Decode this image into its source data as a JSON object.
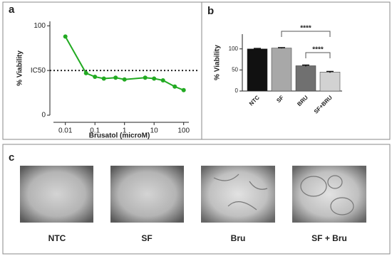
{
  "panel_labels": [
    "a",
    "b",
    "c"
  ],
  "chart_data": [
    {
      "type": "line",
      "x": [
        0.01,
        0.05,
        0.1,
        0.2,
        0.5,
        1,
        5,
        10,
        20,
        50,
        100
      ],
      "values": [
        88,
        47,
        43,
        41,
        42,
        40,
        42,
        41,
        39,
        32,
        28
      ],
      "color": "#22aa22",
      "log_x": true,
      "xlim": [
        0.003,
        150
      ],
      "xticks": [
        0.01,
        0.1,
        1,
        10,
        100
      ],
      "ylim": [
        0,
        105
      ],
      "yticks": [
        0,
        {
          "value": 50,
          "label": "IC50"
        },
        100
      ],
      "reference_line": 50,
      "xlabel": "Brusatol (microM)",
      "ylabel": "% Viability"
    },
    {
      "type": "bar",
      "categories": [
        "NTC",
        "SF",
        "BRU",
        "SF+BRU"
      ],
      "values": [
        100,
        102,
        60,
        45
      ],
      "errors": [
        1,
        1,
        1.5,
        1.5
      ],
      "colors": [
        "#111111",
        "#a8a8a8",
        "#707070",
        "#d2d2d2"
      ],
      "ylim": [
        0,
        135
      ],
      "yticks": [
        0,
        50,
        100
      ],
      "ylabel": "% Viability",
      "annotations": [
        {
          "text": "****",
          "categories": [
            "SF",
            "SF+BRU"
          ]
        },
        {
          "text": "****",
          "categories": [
            "BRU",
            "SF+BRU"
          ]
        }
      ]
    }
  ],
  "images": {
    "labels": [
      "NTC",
      "SF",
      "Bru",
      "SF + Bru"
    ]
  }
}
